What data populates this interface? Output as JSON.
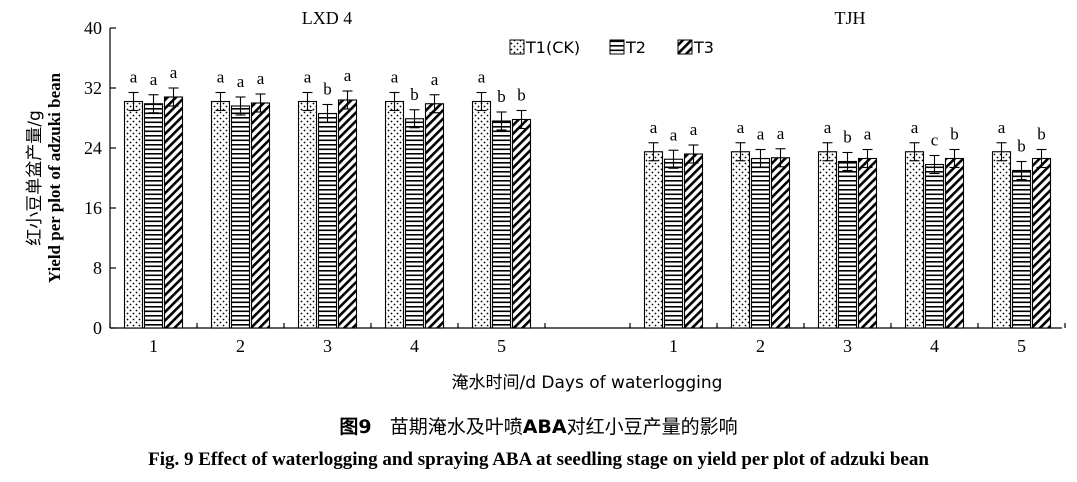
{
  "chart_data": {
    "type": "bar",
    "title": "",
    "xlabel": "淹水时间/d Days of waterlogging",
    "ylabel_cn": "红小豆单盆产量/g",
    "ylabel_en": "Yield per plot of adzuki bean",
    "ylim": [
      0,
      40
    ],
    "yticks": [
      "0",
      "8",
      "16",
      "24",
      "32",
      "40"
    ],
    "legend": {
      "placement": "top-right",
      "entries": [
        "T1(CK)",
        "T2",
        "T3"
      ]
    },
    "groups": [
      {
        "name": "LXD 4",
        "categories": [
          "1",
          "2",
          "3",
          "4",
          "5"
        ],
        "series": [
          {
            "name": "T1(CK)",
            "values": [
              30.2,
              30.2,
              30.2,
              30.2,
              30.2
            ],
            "errors": [
              1.2,
              1.2,
              1.2,
              1.2,
              1.2
            ],
            "letters": [
              "a",
              "a",
              "a",
              "a",
              "a"
            ]
          },
          {
            "name": "T2",
            "values": [
              29.9,
              29.6,
              28.6,
              27.9,
              27.6
            ],
            "errors": [
              1.2,
              1.2,
              1.2,
              1.2,
              1.2
            ],
            "letters": [
              "a",
              "a",
              "b",
              "b",
              "b"
            ]
          },
          {
            "name": "T3",
            "values": [
              30.8,
              30.0,
              30.4,
              29.9,
              27.8
            ],
            "errors": [
              1.2,
              1.2,
              1.2,
              1.2,
              1.2
            ],
            "letters": [
              "a",
              "a",
              "a",
              "a",
              "b"
            ]
          }
        ]
      },
      {
        "name": "TJH",
        "categories": [
          "1",
          "2",
          "3",
          "4",
          "5"
        ],
        "series": [
          {
            "name": "T1(CK)",
            "values": [
              23.5,
              23.5,
              23.5,
              23.5,
              23.5
            ],
            "errors": [
              1.2,
              1.2,
              1.2,
              1.2,
              1.2
            ],
            "letters": [
              "a",
              "a",
              "a",
              "a",
              "a"
            ]
          },
          {
            "name": "T2",
            "values": [
              22.5,
              22.6,
              22.2,
              21.8,
              21.0
            ],
            "errors": [
              1.2,
              1.2,
              1.2,
              1.2,
              1.2
            ],
            "letters": [
              "a",
              "a",
              "b",
              "c",
              "b"
            ]
          },
          {
            "name": "T3",
            "values": [
              23.2,
              22.7,
              22.6,
              22.6,
              22.6
            ],
            "errors": [
              1.2,
              1.2,
              1.2,
              1.2,
              1.2
            ],
            "letters": [
              "a",
              "a",
              "a",
              "b",
              "b"
            ]
          }
        ]
      }
    ]
  },
  "caption": {
    "cn_fig": "图9",
    "cn_text_a": "苗期淹水及叶喷",
    "cn_text_b": "ABA",
    "cn_text_c": "对红小豆产量的影响",
    "en": "Fig. 9    Effect of waterlogging and spraying ABA at seedling stage on yield per plot of adzuki bean"
  }
}
